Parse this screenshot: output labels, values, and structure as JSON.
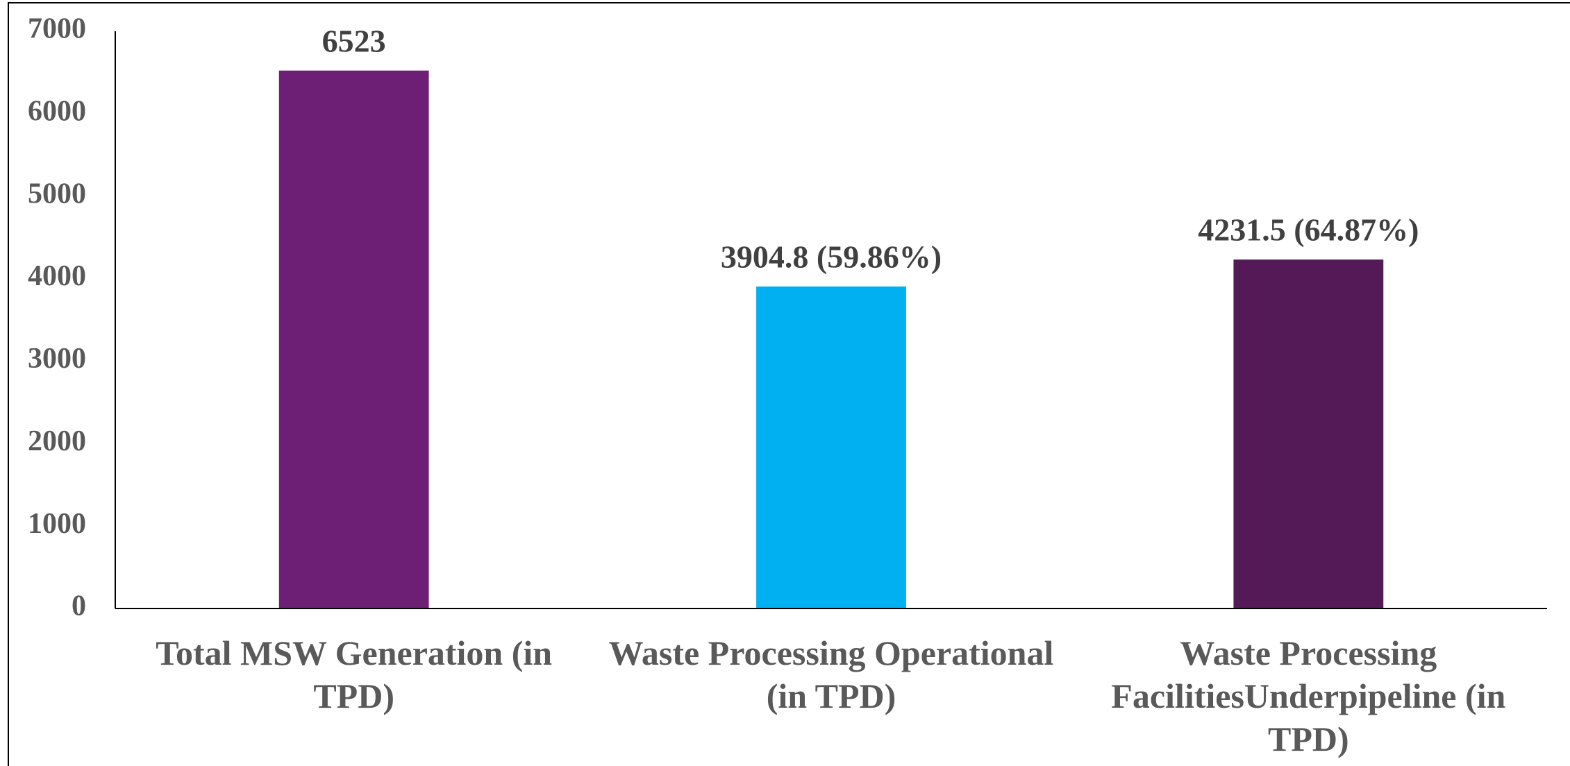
{
  "chart_data": {
    "type": "bar",
    "categories": [
      "Total MSW Generation (in TPD)",
      "Waste Processing Operational (in TPD)",
      "Waste Processing FacilitiesUnderpipeline (in TPD)"
    ],
    "values": [
      6523,
      3904.8,
      4231.5
    ],
    "value_labels": [
      "6523",
      "3904.8 (59.86%)",
      "4231.5 (64.87%)"
    ],
    "colors": [
      "#6d1f75",
      "#00b0f0",
      "#531a57"
    ],
    "ylim": [
      0,
      7000
    ],
    "yticks": [
      0,
      1000,
      2000,
      3000,
      4000,
      5000,
      6000,
      7000
    ],
    "grid": false
  }
}
